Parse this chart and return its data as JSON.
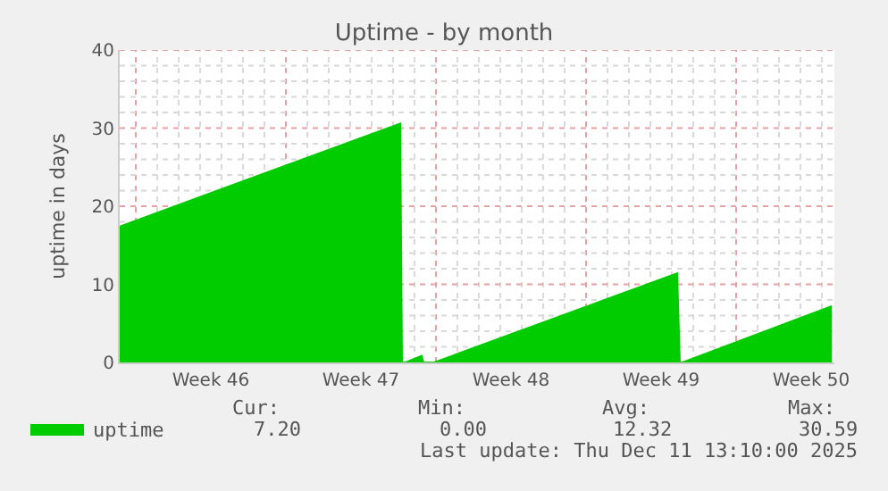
{
  "chart_data": {
    "type": "area",
    "title": "Uptime - by month",
    "ylabel": "uptime in days",
    "x": [
      "2025-11-09T06:00",
      "2025-11-22T08:00",
      "2025-11-22T10:00",
      "2025-11-22T14:00",
      "2025-11-23T08:00",
      "2025-11-23T10:00",
      "2025-11-23T22:00",
      "2025-12-05T06:00",
      "2025-12-05T09:00",
      "2025-12-05T12:00",
      "2025-12-12T11:00"
    ],
    "series": [
      {
        "name": "uptime",
        "color": "#00cc00",
        "values": [
          17.4,
          30.59,
          0,
          0,
          0.85,
          0,
          0,
          11.4,
          0,
          0,
          7.2
        ]
      }
    ],
    "xlim": [
      "2025-11-09T06:00",
      "2025-12-12T14:00"
    ],
    "xticks": [
      {
        "value": "2025-11-10",
        "label": null
      },
      {
        "value": "2025-11-13T12:00",
        "label": "Week 46"
      },
      {
        "value": "2025-11-17",
        "label": null
      },
      {
        "value": "2025-11-20T12:00",
        "label": "Week 47"
      },
      {
        "value": "2025-11-24",
        "label": null
      },
      {
        "value": "2025-11-27T12:00",
        "label": "Week 48"
      },
      {
        "value": "2025-12-01",
        "label": null
      },
      {
        "value": "2025-12-04T12:00",
        "label": "Week 49"
      },
      {
        "value": "2025-12-08",
        "label": null
      },
      {
        "value": "2025-12-11T12:00",
        "label": "Week 50"
      }
    ],
    "ylim": [
      0,
      40
    ],
    "yticks": [
      0,
      10,
      20,
      30,
      40
    ],
    "grid": true,
    "legend": "bottom left",
    "annotations": [
      "Cur:",
      "7.20",
      "Min:",
      "0.00",
      "Avg:",
      "12.32",
      "Max:",
      "30.59",
      "Last update: Thu Dec 11 13:10:00 2025"
    ]
  }
}
